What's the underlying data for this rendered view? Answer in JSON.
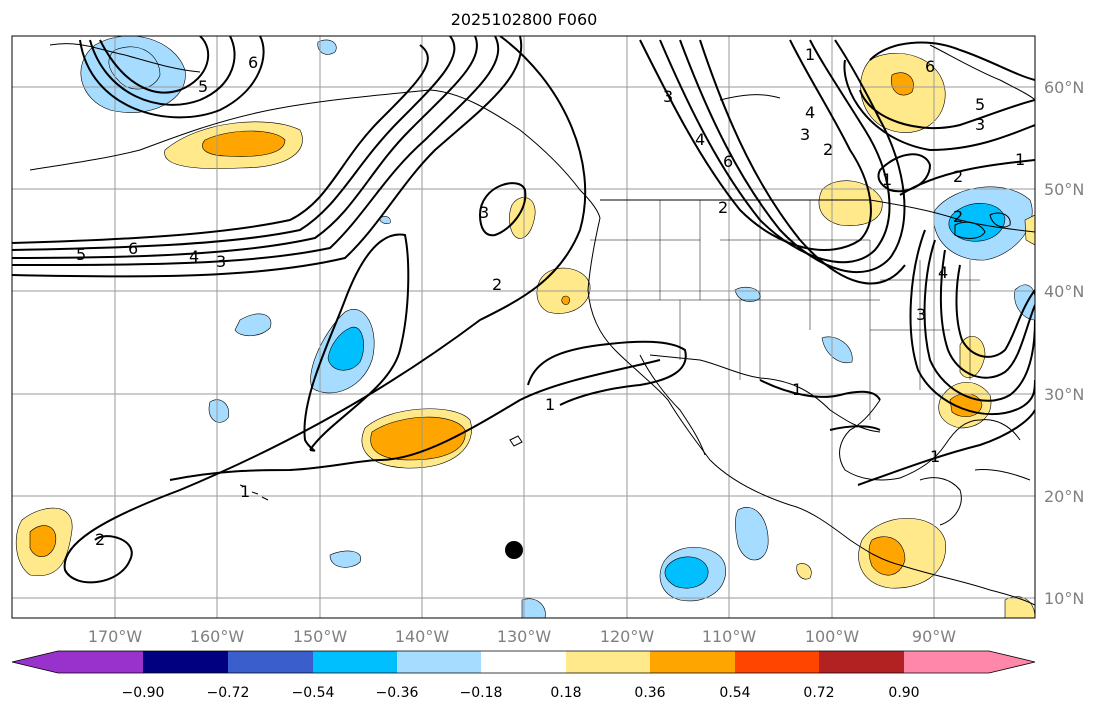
{
  "title": "2025102800 F060",
  "lat_labels": [
    "60°N",
    "50°N",
    "40°N",
    "30°N",
    "20°N",
    "10°N"
  ],
  "lon_labels": [
    "170°W",
    "160°W",
    "150°W",
    "140°W",
    "130°W",
    "120°W",
    "110°W",
    "100°W",
    "90°W"
  ],
  "colorbar": {
    "ticks": [
      "−0.90",
      "−0.72",
      "−0.54",
      "−0.36",
      "−0.18",
      "0.18",
      "0.36",
      "0.54",
      "0.72",
      "0.90"
    ],
    "colors": [
      "#9932cc",
      "#000080",
      "#3a5fcd",
      "#00bfff",
      "#a6dcff",
      "#ffffff",
      "#ffe98a",
      "#ffa500",
      "#ff4500",
      "#b22222",
      "#ff88aa"
    ]
  },
  "contour_labels": [
    "6",
    "5",
    "6",
    "5",
    "4",
    "3",
    "3",
    "2",
    "1",
    "2",
    "1",
    "2",
    "3",
    "4",
    "6",
    "1",
    "2",
    "3",
    "4",
    "1",
    "6",
    "5",
    "3",
    "2",
    "1",
    "3",
    "4",
    "1",
    "1",
    "2"
  ]
}
